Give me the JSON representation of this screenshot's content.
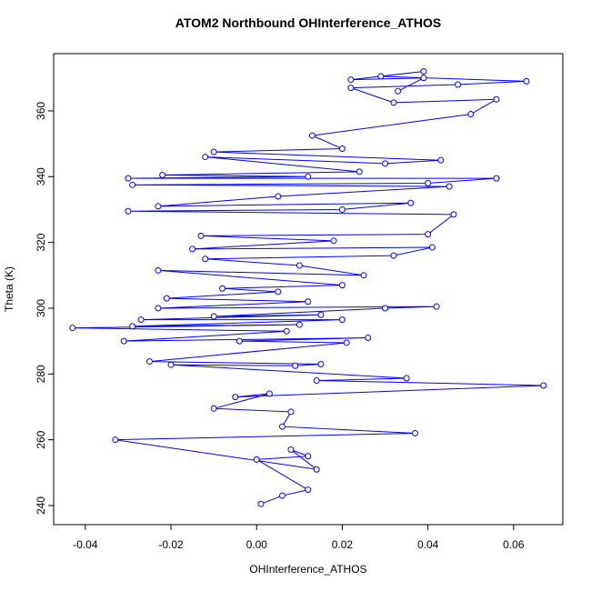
{
  "chart_data": {
    "type": "line",
    "title": "ATOM2 Northbound OHInterference_ATHOS",
    "x_label": "OHInterference_ATHOS",
    "y_label": "Theta (K)",
    "color": "#0000ff",
    "x": [
      0.001,
      0.006,
      0.012,
      0.0,
      0.012,
      0.008,
      0.014,
      -0.033,
      0.037,
      0.006,
      0.008,
      -0.01,
      0.003,
      -0.005,
      0.067,
      0.014,
      0.035,
      -0.02,
      0.009,
      0.015,
      -0.025,
      0.021,
      -0.004,
      0.026,
      -0.031,
      0.007,
      -0.043,
      0.01,
      -0.029,
      0.02,
      -0.027,
      0.015,
      -0.01,
      0.03,
      0.042,
      -0.023,
      0.012,
      -0.021,
      0.005,
      -0.008,
      0.02,
      -0.023,
      0.025,
      0.01,
      -0.012,
      0.032,
      0.041,
      -0.015,
      0.018,
      -0.013,
      0.04,
      0.046,
      -0.03,
      0.02,
      0.036,
      -0.023,
      0.005,
      0.045,
      -0.029,
      0.04,
      0.056,
      -0.03,
      0.012,
      -0.022,
      0.024,
      -0.012,
      0.03,
      0.043,
      -0.01,
      0.02,
      0.013,
      0.05,
      0.056,
      0.032,
      0.022,
      0.047,
      0.063,
      0.029,
      0.039,
      0.022,
      0.039,
      0.033
    ],
    "values": [
      240.5,
      243,
      244.8,
      254,
      255,
      257,
      251,
      260,
      262,
      264,
      268.5,
      269.5,
      274,
      273,
      276.5,
      278,
      278.7,
      282.8,
      282.5,
      283,
      283.8,
      289.5,
      290,
      291,
      290,
      293,
      294,
      295,
      294.5,
      296.5,
      296.5,
      298,
      297.5,
      300,
      300.5,
      300,
      302,
      303,
      305,
      306,
      307,
      311.5,
      310,
      313,
      315,
      316,
      318.5,
      318,
      320.5,
      322,
      322.5,
      328.5,
      329.5,
      330,
      332,
      331,
      334,
      337,
      337.5,
      338,
      339.5,
      339.5,
      340,
      340.5,
      341.5,
      346,
      344,
      345,
      347.5,
      348.5,
      352.5,
      359,
      363.5,
      362.5,
      367,
      368,
      369,
      370.5,
      372,
      369.5,
      370,
      366
    ],
    "xlim": [
      -0.0474,
      0.0715
    ],
    "ylim": [
      234.2,
      377.4
    ],
    "xticks": [
      -0.04,
      -0.02,
      {
        "value": 0,
        "label": "0.00"
      },
      0.02,
      0.04,
      0.06
    ],
    "yticks": [
      240,
      260,
      280,
      300,
      320,
      340,
      360
    ]
  }
}
